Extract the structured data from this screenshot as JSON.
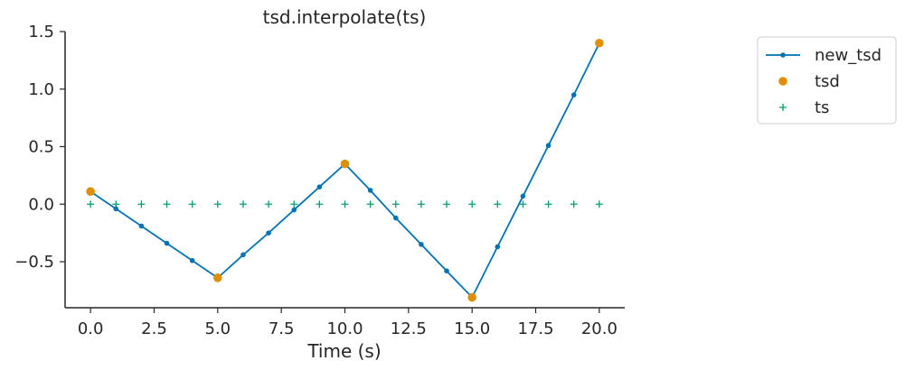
{
  "chart_data": {
    "type": "line",
    "title": "tsd.interpolate(ts)",
    "xlabel": "Time (s)",
    "ylabel": "",
    "xlim": [
      -1,
      21
    ],
    "ylim": [
      -0.9,
      1.5
    ],
    "xticks": [
      0,
      2.5,
      5,
      7.5,
      10,
      12.5,
      15,
      17.5,
      20
    ],
    "xtick_labels": [
      "0.0",
      "2.5",
      "5.0",
      "7.5",
      "10.0",
      "12.5",
      "15.0",
      "17.5",
      "20.0"
    ],
    "yticks": [
      -0.5,
      0.0,
      0.5,
      1.0,
      1.5
    ],
    "ytick_labels": [
      "−0.5",
      "0.0",
      "0.5",
      "1.0",
      "1.5"
    ],
    "grid": false,
    "legend_placement": "outside-right",
    "series": [
      {
        "name": "new_tsd",
        "kind": "line-with-dots",
        "color": "#0173b2",
        "x": [
          0,
          1,
          2,
          3,
          4,
          5,
          6,
          7,
          8,
          9,
          10,
          11,
          12,
          13,
          14,
          15,
          16,
          17,
          18,
          19,
          20
        ],
        "y": [
          0.11,
          -0.04,
          -0.19,
          -0.34,
          -0.49,
          -0.64,
          -0.44,
          -0.25,
          -0.05,
          0.15,
          0.35,
          0.12,
          -0.12,
          -0.35,
          -0.58,
          -0.81,
          -0.37,
          0.07,
          0.51,
          0.95,
          1.4
        ]
      },
      {
        "name": "tsd",
        "kind": "marker-o",
        "color": "#de8f05",
        "x": [
          0,
          5,
          10,
          15,
          20
        ],
        "y": [
          0.11,
          -0.64,
          0.35,
          -0.81,
          1.4
        ]
      },
      {
        "name": "ts",
        "kind": "marker-plus",
        "color": "#029e73",
        "x": [
          0,
          1,
          2,
          3,
          4,
          5,
          6,
          7,
          8,
          9,
          10,
          11,
          12,
          13,
          14,
          15,
          16,
          17,
          18,
          19,
          20
        ],
        "y": [
          0,
          0,
          0,
          0,
          0,
          0,
          0,
          0,
          0,
          0,
          0,
          0,
          0,
          0,
          0,
          0,
          0,
          0,
          0,
          0,
          0
        ]
      }
    ]
  }
}
